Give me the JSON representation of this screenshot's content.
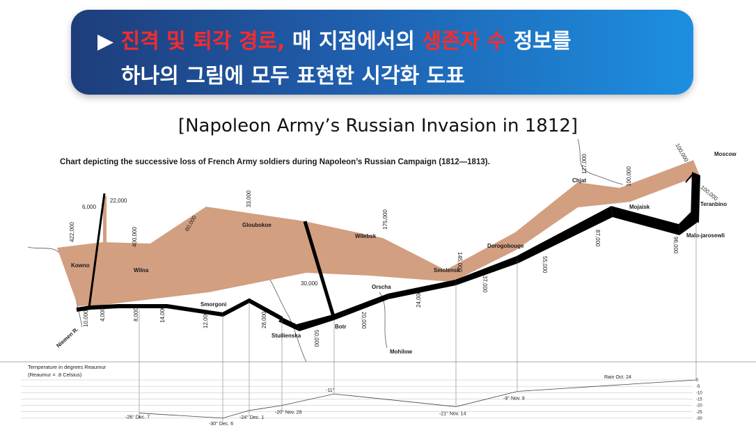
{
  "banner": {
    "line1_red1": "진격 및 퇴각 경로,",
    "line1_mid": " 매 지점에서의 ",
    "line1_red2": "생존자 수",
    "line1_end": " 정보를",
    "line2": "하나의 그림에 모두 표현한 시각화 도표",
    "marker": "▶"
  },
  "subtitle": "[Napoleon Army’s Russian Invasion in 1812]",
  "chart_data": {
    "type": "flow-map",
    "title": "Chart depicting the successive loss of French Army soldiers during Napoleon’s Russian Campaign (1812—1813).",
    "colors": {
      "advance": "#d29f80",
      "retreat": "#000000"
    },
    "cities": [
      {
        "name": "Kowno",
        "key": "kowno"
      },
      {
        "name": "Wilna",
        "key": "wilna"
      },
      {
        "name": "Smorgoni",
        "key": "smorgoni"
      },
      {
        "name": "Gloubokoe",
        "key": "gloubokoe"
      },
      {
        "name": "Wilebsk",
        "key": "wilebsk"
      },
      {
        "name": "Orscha",
        "key": "orscha"
      },
      {
        "name": "Smolensk",
        "key": "smolensk"
      },
      {
        "name": "Dorogobouge",
        "key": "dorogobouge"
      },
      {
        "name": "Chjat",
        "key": "chjat"
      },
      {
        "name": "Mojaisk",
        "key": "mojaisk"
      },
      {
        "name": "Moscow",
        "key": "moscow"
      },
      {
        "name": "Tarantino",
        "key": "tarantino",
        "printed": "Teranbino"
      },
      {
        "name": "Malo-jarosewli",
        "key": "malo"
      },
      {
        "name": "Stuilienska",
        "key": "stuilienska"
      },
      {
        "name": "Botr",
        "key": "botr"
      },
      {
        "name": "Mohilow",
        "key": "mohilow"
      },
      {
        "name": "Niemen R.",
        "key": "niemen"
      }
    ],
    "advance_counts": [
      "422,000",
      "400,000",
      "175,000",
      "145,000",
      "127,000",
      "100,000",
      "100,000",
      "22,000",
      "6,000",
      "60,000",
      "33,000"
    ],
    "retreat_counts": [
      "100,000",
      "96,000",
      "87,000",
      "55,000",
      "37,000",
      "24,000",
      "20,000",
      "50,000",
      "28,000",
      "12,000",
      "14,000",
      "8,000",
      "4,000",
      "10,000",
      "30,000"
    ],
    "temperature": {
      "axis_label_1": "Temperature in degrees Reaumur",
      "axis_label_2": "(Reaumur = .8 Celsius)",
      "ticks": [
        "0",
        "-5",
        "-10",
        "-15",
        "-20",
        "-25",
        "-30"
      ],
      "points": [
        {
          "label": "Rain Oct. 24",
          "value": 0
        },
        {
          "label": "-9° Nov. 9",
          "value": -9
        },
        {
          "label": "-21° Nov. 14",
          "value": -21
        },
        {
          "label": "-11°",
          "value": -11
        },
        {
          "label": "-20° Nov. 28",
          "value": -20
        },
        {
          "label": "-24° Dec. 1",
          "value": -24
        },
        {
          "label": "-30° Dec. 6",
          "value": -30
        },
        {
          "label": "-26° Dec. 7",
          "value": -26
        }
      ]
    }
  }
}
